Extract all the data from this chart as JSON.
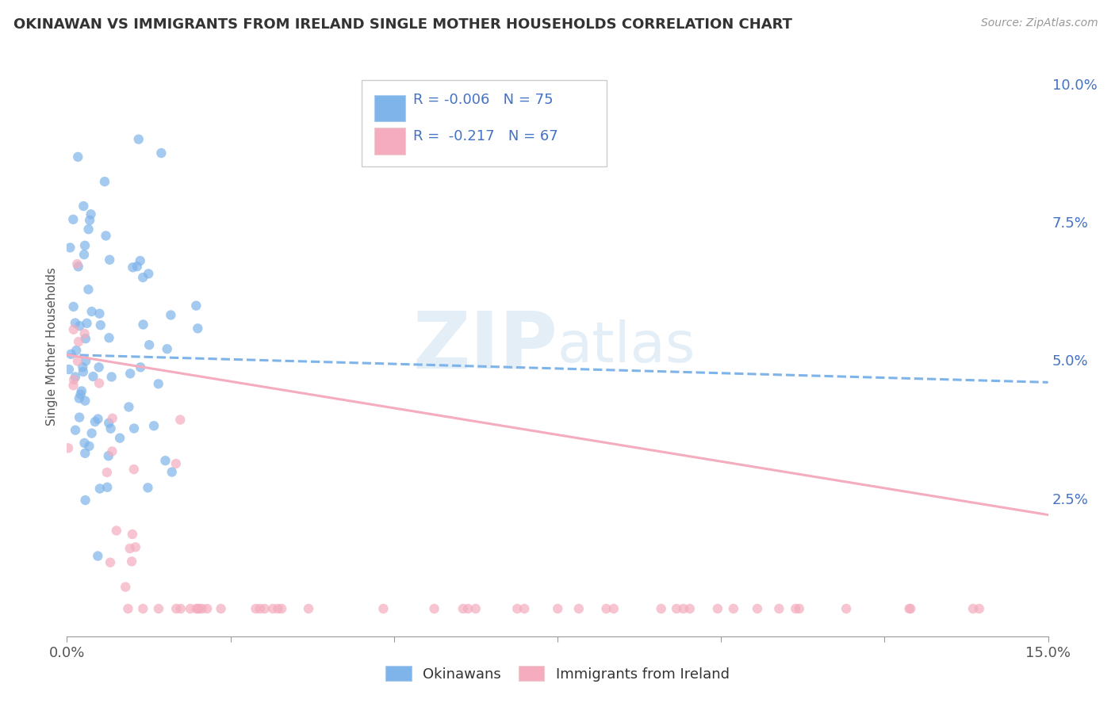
{
  "title": "OKINAWAN VS IMMIGRANTS FROM IRELAND SINGLE MOTHER HOUSEHOLDS CORRELATION CHART",
  "source": "Source: ZipAtlas.com",
  "ylabel": "Single Mother Households",
  "xlim": [
    0.0,
    0.15
  ],
  "ylim": [
    0.0,
    0.105
  ],
  "xtick_positions": [
    0.0,
    0.025,
    0.05,
    0.075,
    0.1,
    0.125,
    0.15
  ],
  "xtick_label_left": "0.0%",
  "xtick_label_right": "15.0%",
  "yticks_right": [
    0.025,
    0.05,
    0.075,
    0.1
  ],
  "yticklabels_right": [
    "2.5%",
    "5.0%",
    "7.5%",
    "10.0%"
  ],
  "r_okinawan": -0.006,
  "n_okinawan": 75,
  "r_ireland": -0.217,
  "n_ireland": 67,
  "color_okinawan": "#7EB4EA",
  "color_ireland": "#F4ACBE",
  "color_text_blue": "#4472C4",
  "color_grid": "#CCCCCC",
  "ok_trendline_start_y": 0.051,
  "ok_trendline_end_y": 0.046,
  "ok_trendline_end_x": 0.15,
  "ir_trendline_start_y": 0.051,
  "ir_trendline_end_y": 0.022,
  "ir_trendline_end_x": 0.15
}
